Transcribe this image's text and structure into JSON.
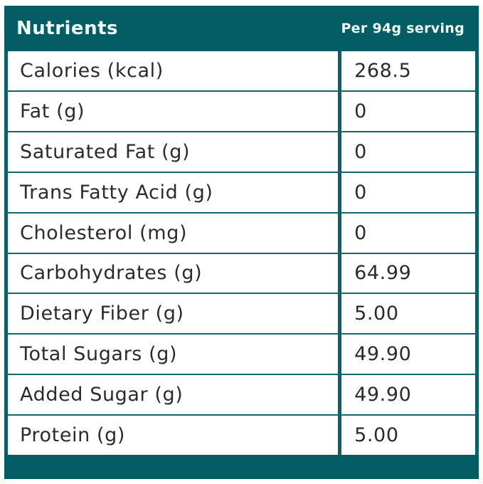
{
  "title": "Nutrients per serving table",
  "colors": {
    "teal_header": "#045c64",
    "teal_border": "#0b5f68",
    "row_divider": "#136670",
    "header_text": "#f2fafa",
    "body_text": "#2b2b2b",
    "background": "#ffffff"
  },
  "table": {
    "header": {
      "nutrients_label": "Nutrients",
      "serving_label": "Per 94g serving"
    },
    "rows": [
      {
        "label": "Calories (kcal)",
        "value": "268.5"
      },
      {
        "label": "Fat (g)",
        "value": "0"
      },
      {
        "label": "Saturated Fat (g)",
        "value": "0"
      },
      {
        "label": "Trans Fatty Acid (g)",
        "value": "0"
      },
      {
        "label": "Cholesterol (mg)",
        "value": "0"
      },
      {
        "label": "Carbohydrates (g)",
        "value": "64.99"
      },
      {
        "label": "Dietary Fiber (g)",
        "value": "5.00"
      },
      {
        "label": "Total Sugars (g)",
        "value": "49.90"
      },
      {
        "label": "Added Sugar (g)",
        "value": "49.90"
      },
      {
        "label": "Protein (g)",
        "value": "5.00"
      }
    ]
  },
  "chart_data": {
    "type": "table",
    "title": "Nutrients",
    "columns": [
      "Nutrients",
      "Per 94g serving"
    ],
    "rows": [
      [
        "Calories (kcal)",
        "268.5"
      ],
      [
        "Fat (g)",
        "0"
      ],
      [
        "Saturated Fat (g)",
        "0"
      ],
      [
        "Trans Fatty Acid (g)",
        "0"
      ],
      [
        "Cholesterol (mg)",
        "0"
      ],
      [
        "Carbohydrates (g)",
        "64.99"
      ],
      [
        "Dietary Fiber (g)",
        "5.00"
      ],
      [
        "Total Sugars (g)",
        "49.90"
      ],
      [
        "Added Sugar (g)",
        "49.90"
      ],
      [
        "Protein (g)",
        "5.00"
      ]
    ]
  }
}
